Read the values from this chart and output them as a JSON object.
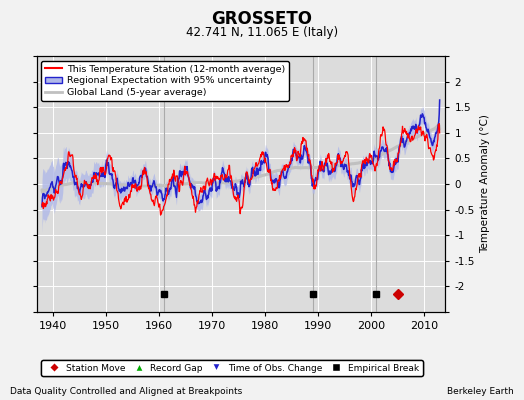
{
  "title": "GROSSETO",
  "subtitle": "42.741 N, 11.065 E (Italy)",
  "ylabel": "Temperature Anomaly (°C)",
  "xlabel_note": "Data Quality Controlled and Aligned at Breakpoints",
  "credit": "Berkeley Earth",
  "xlim": [
    1937,
    2014
  ],
  "ylim": [
    -2.5,
    2.5
  ],
  "yticks": [
    -2,
    -1.5,
    -1,
    -0.5,
    0,
    0.5,
    1,
    1.5,
    2
  ],
  "yticks_all": [
    -2.5,
    -2,
    -1.5,
    -1,
    -0.5,
    0,
    0.5,
    1,
    1.5,
    2,
    2.5
  ],
  "xticks": [
    1940,
    1950,
    1960,
    1970,
    1980,
    1990,
    2000,
    2010
  ],
  "bg_color": "#dcdcdc",
  "station_color": "#ff0000",
  "regional_color": "#2222cc",
  "regional_fill_color": "#b0b8e8",
  "global_color": "#c0c0c0",
  "empirical_break_years": [
    1961,
    1989,
    2001
  ],
  "station_move_years": [
    2005
  ],
  "seed": 77
}
